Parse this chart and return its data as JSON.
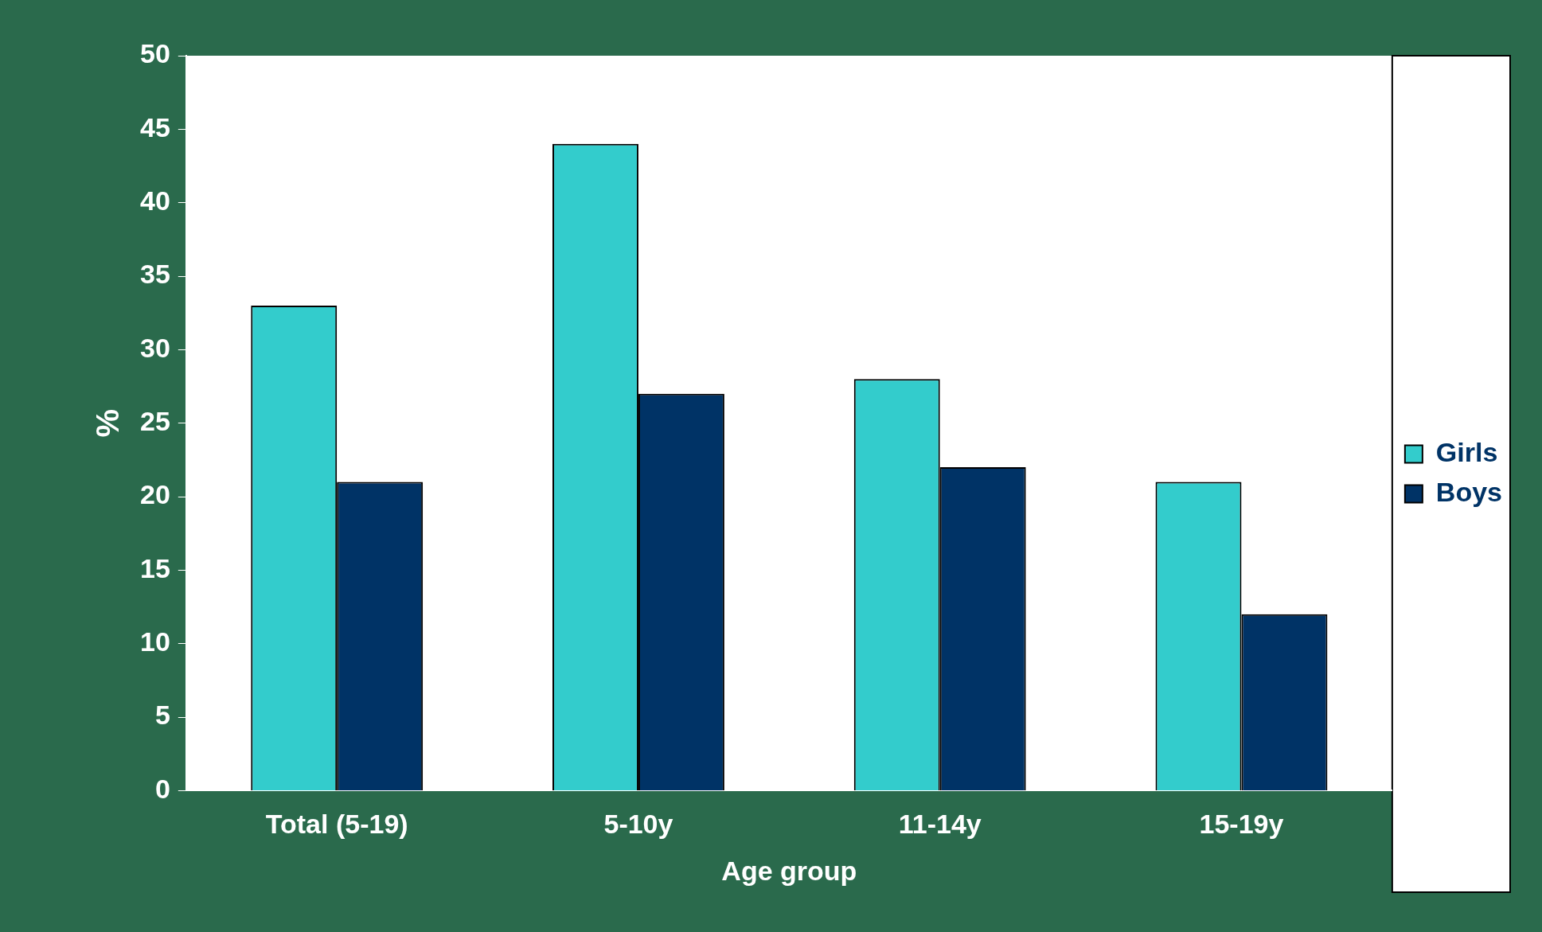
{
  "chart_data": {
    "type": "bar",
    "xlabel": "Age group",
    "ylabel": "%",
    "categories": [
      "Total (5-19)",
      "5-10y",
      "11-14y",
      "15-19y"
    ],
    "series": [
      {
        "name": "Girls",
        "color": "#33cccc",
        "values": [
          33,
          44,
          28,
          21
        ]
      },
      {
        "name": "Boys",
        "color": "#003366",
        "values": [
          21,
          27,
          22,
          12
        ]
      }
    ],
    "ylim": [
      0,
      50
    ],
    "yticks": [
      0,
      5,
      10,
      15,
      20,
      25,
      30,
      35,
      40,
      45,
      50
    ],
    "grid": false,
    "legend": "right"
  }
}
